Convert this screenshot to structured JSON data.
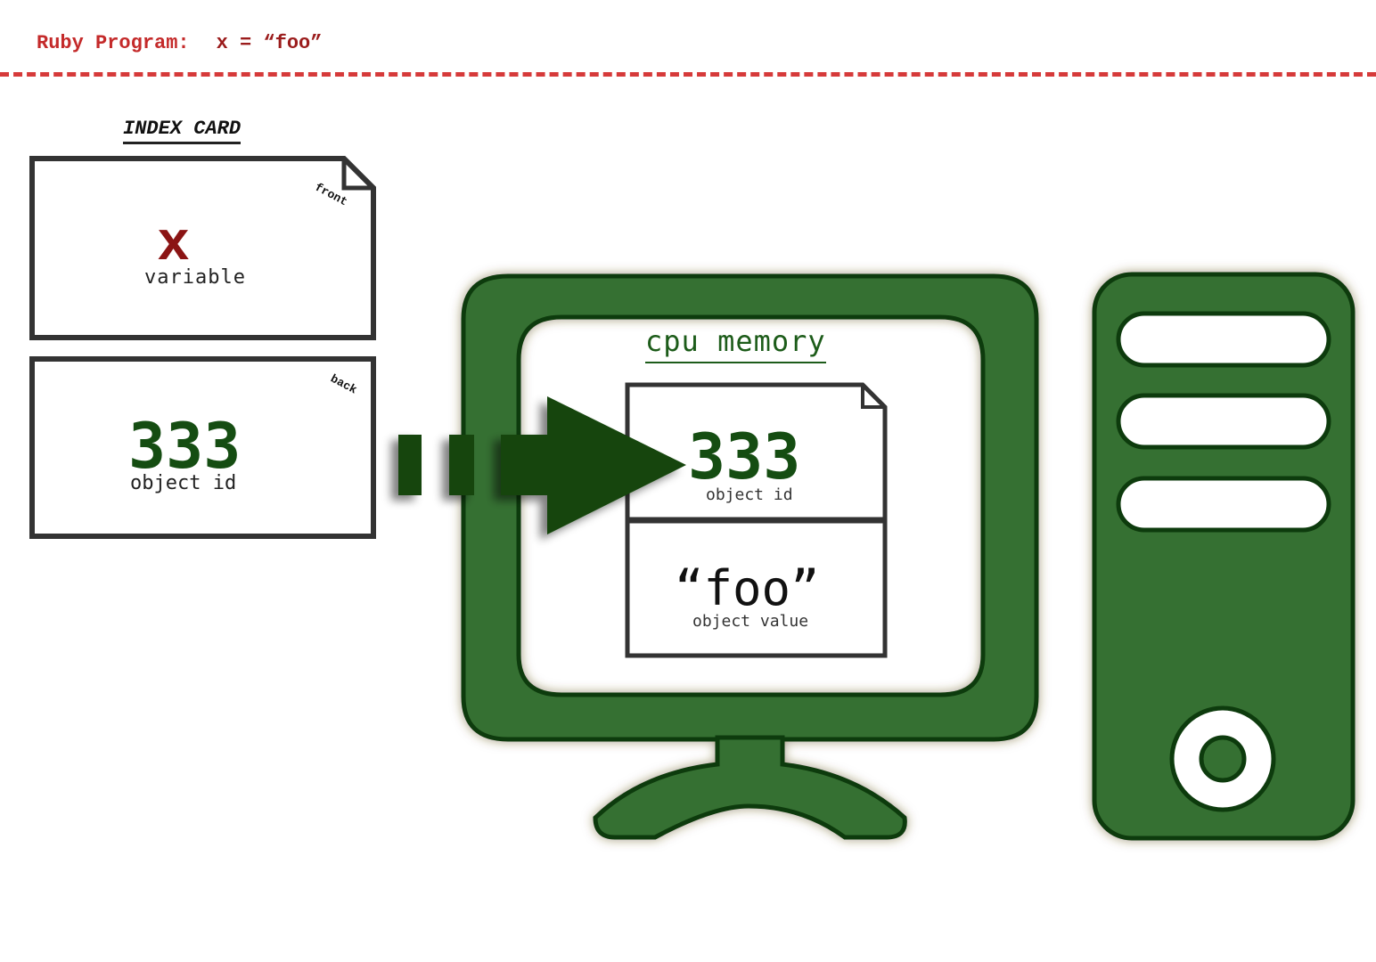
{
  "program": {
    "label": "Ruby Program:",
    "code": "x = “foo”"
  },
  "index_card": {
    "title": "INDEX CARD",
    "front": {
      "corner_label": "front",
      "symbol": "x",
      "caption": "variable"
    },
    "back": {
      "corner_label": "back",
      "value": "333",
      "caption": "object id"
    }
  },
  "memory": {
    "title": "cpu memory",
    "object_id": "333",
    "object_id_caption": "object id",
    "object_value": "“foo”",
    "object_value_caption": "object value"
  },
  "colors": {
    "accent_red": "#c42a2a",
    "computer_green": "#367031",
    "arrow_green": "#124509",
    "text_green": "#154d12"
  },
  "icons": [
    "computer-monitor-icon",
    "computer-tower-icon",
    "pointer-arrow-icon"
  ]
}
